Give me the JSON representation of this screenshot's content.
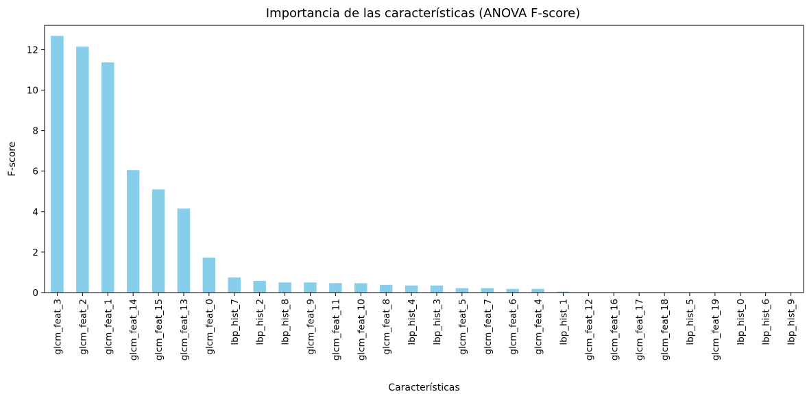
{
  "chart_data": {
    "type": "bar",
    "title": "Importancia de las características (ANOVA F-score)",
    "xlabel": "Características",
    "ylabel": "F-score",
    "ylim": [
      0,
      13.2
    ],
    "yticks": [
      0,
      2,
      4,
      6,
      8,
      10,
      12
    ],
    "grid": false,
    "legend": "none",
    "bar_color": "#87ceeb",
    "categories": [
      "glcm_feat_3",
      "glcm_feat_2",
      "glcm_feat_1",
      "glcm_feat_14",
      "glcm_feat_15",
      "glcm_feat_13",
      "glcm_feat_0",
      "lbp_hist_7",
      "lbp_hist_2",
      "lbp_hist_8",
      "glcm_feat_9",
      "glcm_feat_11",
      "glcm_feat_10",
      "glcm_feat_8",
      "lbp_hist_4",
      "lbp_hist_3",
      "glcm_feat_5",
      "glcm_feat_7",
      "glcm_feat_6",
      "glcm_feat_4",
      "lbp_hist_1",
      "glcm_feat_12",
      "glcm_feat_16",
      "glcm_feat_17",
      "glcm_feat_18",
      "lbp_hist_5",
      "glcm_feat_19",
      "lbp_hist_0",
      "lbp_hist_6",
      "lbp_hist_9"
    ],
    "values": [
      12.68,
      12.15,
      11.37,
      6.05,
      5.1,
      4.15,
      1.73,
      0.75,
      0.58,
      0.5,
      0.5,
      0.47,
      0.46,
      0.38,
      0.35,
      0.35,
      0.22,
      0.22,
      0.18,
      0.18,
      0.05,
      0.0,
      0.0,
      0.0,
      0.0,
      0.0,
      0.0,
      0.0,
      0.0,
      0.0
    ]
  }
}
